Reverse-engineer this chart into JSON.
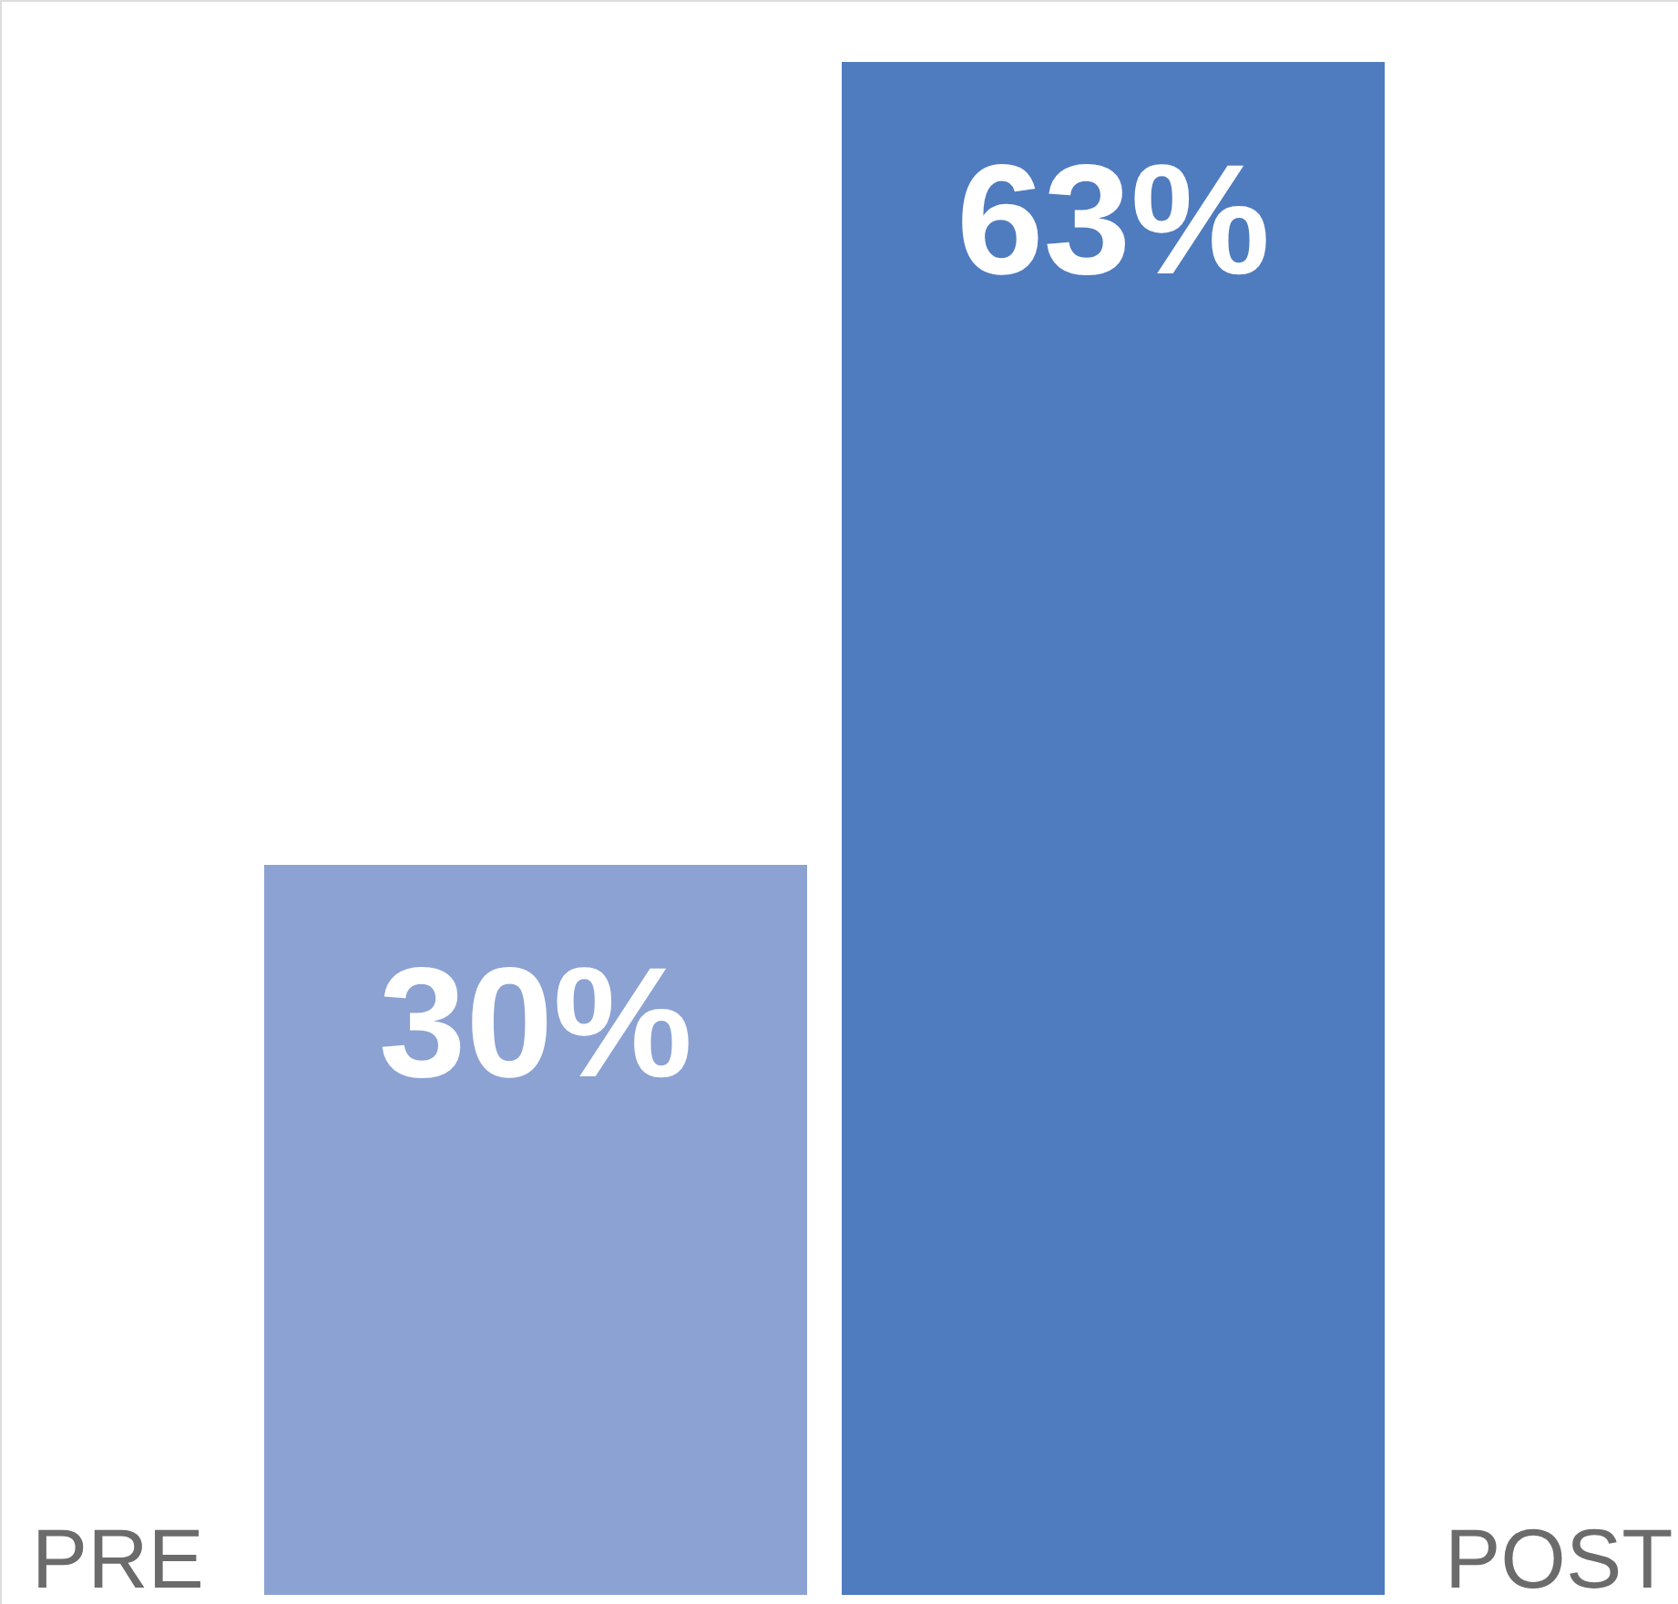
{
  "chart_data": {
    "type": "bar",
    "categories": [
      "PRE",
      "POST"
    ],
    "values": [
      30,
      63
    ],
    "colors": [
      "#8ba2d2",
      "#4f7bbf"
    ],
    "value_labels": [
      "30%",
      "63%"
    ],
    "tick_labels": false
  }
}
